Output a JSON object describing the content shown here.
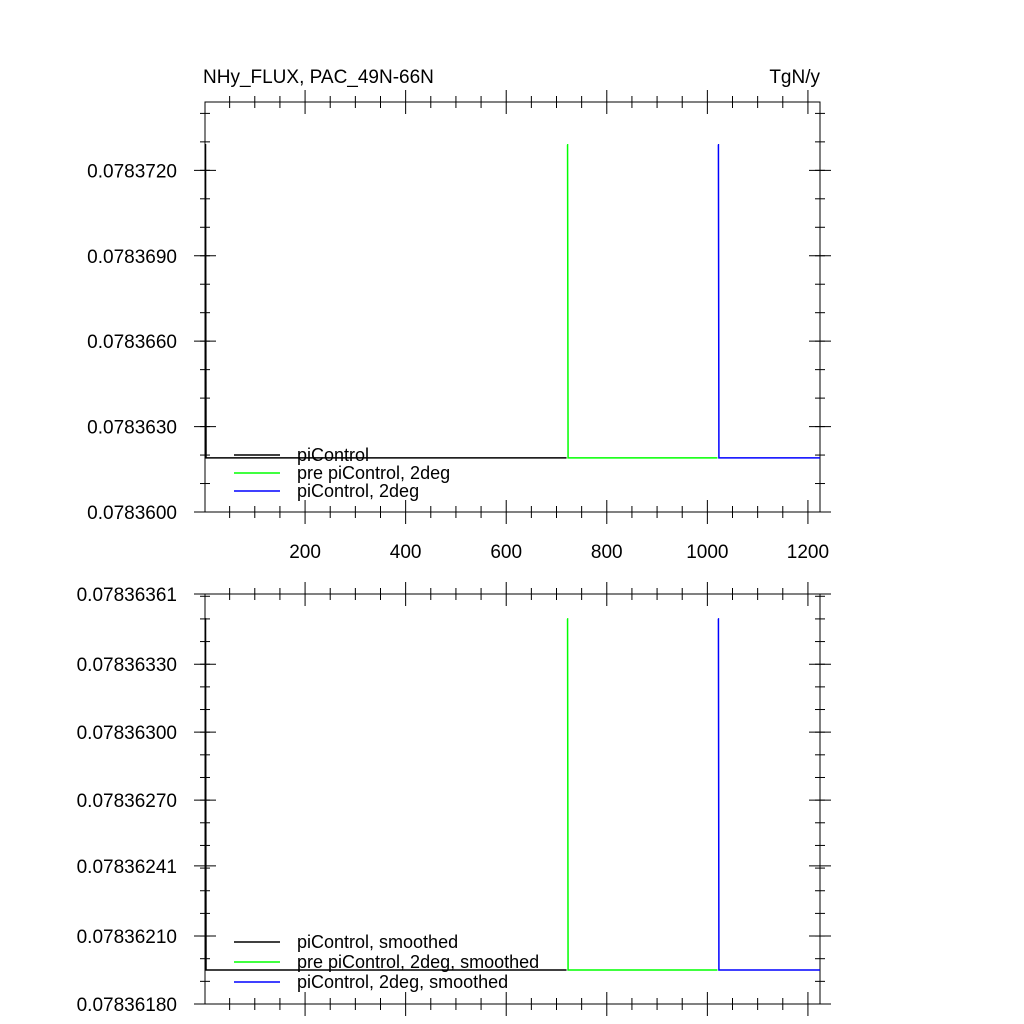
{
  "chart_data": [
    {
      "type": "line",
      "title": "NHy_FLUX, PAC_49N-66N",
      "units": "TgN/y",
      "xlim": [
        1,
        1224
      ],
      "ylim": [
        0.07836,
        0.0783744
      ],
      "x_ticks": [
        200,
        400,
        600,
        800,
        1000,
        1200
      ],
      "x_tick_labels": [
        "200",
        "400",
        "600",
        "800",
        "1000",
        "1200"
      ],
      "y_ticks": [
        0.07836,
        0.078363,
        0.078366,
        0.078369,
        0.078372
      ],
      "y_tick_labels": [
        "0.0783600",
        "0.0783630",
        "0.0783660",
        "0.0783690",
        "0.0783720"
      ],
      "legend_position": "bottom-left",
      "series": [
        {
          "name": "piControl",
          "color": "#000000",
          "x": [
            1,
            2,
            3,
            720
          ],
          "y": [
            0.0783729,
            0.0783729,
            0.0783619,
            0.0783619
          ]
        },
        {
          "name": "pre piControl, 2deg",
          "color": "#00ff00",
          "x": [
            721,
            722,
            723,
            1020
          ],
          "y": [
            0.0783729,
            0.0783729,
            0.0783619,
            0.0783619
          ]
        },
        {
          "name": "piControl, 2deg",
          "color": "#0000ff",
          "x": [
            1021,
            1022,
            1023,
            1224
          ],
          "y": [
            0.0783729,
            0.0783729,
            0.0783619,
            0.0783619
          ]
        }
      ]
    },
    {
      "type": "line",
      "xlim": [
        1,
        1224
      ],
      "ylim": [
        0.0783618,
        0.07836361
      ],
      "x_ticks": [
        200,
        400,
        600,
        800,
        1000,
        1200
      ],
      "y_ticks": [
        0.0783618,
        0.0783621,
        0.07836241,
        0.0783627,
        0.078363,
        0.0783633,
        0.07836361
      ],
      "y_tick_labels": [
        "0.07836180",
        "0.07836210",
        "0.07836241",
        "0.07836270",
        "0.07836300",
        "0.07836330",
        "0.07836361"
      ],
      "legend_position": "bottom-left",
      "series": [
        {
          "name": "piControl, smoothed",
          "color": "#000000",
          "x": [
            1,
            2,
            3,
            720
          ],
          "y": [
            0.0783635,
            0.0783635,
            0.07836195,
            0.07836195
          ]
        },
        {
          "name": "pre piControl, 2deg, smoothed",
          "color": "#00ff00",
          "x": [
            721,
            722,
            723,
            1020
          ],
          "y": [
            0.0783635,
            0.0783635,
            0.07836195,
            0.07836195
          ]
        },
        {
          "name": "piControl, 2deg, smoothed",
          "color": "#0000ff",
          "x": [
            1021,
            1022,
            1023,
            1224
          ],
          "y": [
            0.0783635,
            0.0783635,
            0.07836195,
            0.07836195
          ]
        }
      ]
    }
  ]
}
